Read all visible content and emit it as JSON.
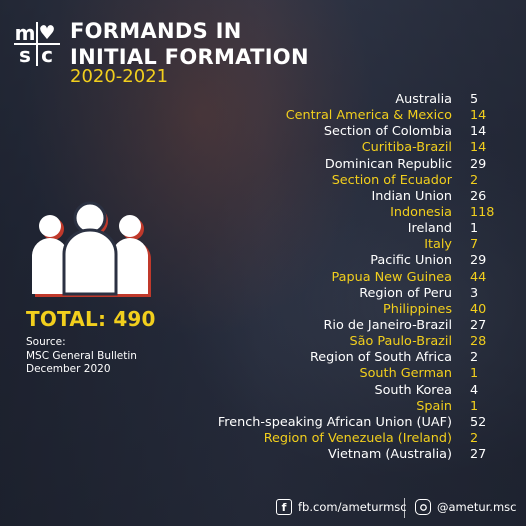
{
  "logo": {
    "top_left": "m",
    "top_right": "♥",
    "bottom_left": "s",
    "bottom_right": "c"
  },
  "title": {
    "line1": "FORMANDS IN",
    "line2": "INITIAL FORMATION"
  },
  "years": "2020-2021",
  "total": "TOTAL: 490",
  "source": {
    "line1": "Source:",
    "line2": "MSC General Bulletin",
    "line3": "December 2020"
  },
  "colors": {
    "accent": "#f2cf1d",
    "text": "#ffffff",
    "icon_shadow": "#c0392b"
  },
  "entries": [
    {
      "name": "Australia",
      "count": "5",
      "highlight": false
    },
    {
      "name": "Central America & Mexico",
      "count": "14",
      "highlight": true
    },
    {
      "name": "Section of Colombia",
      "count": "14",
      "highlight": false
    },
    {
      "name": "Curitiba-Brazil",
      "count": "14",
      "highlight": true
    },
    {
      "name": "Dominican Republic",
      "count": "29",
      "highlight": false
    },
    {
      "name": "Section of Ecuador",
      "count": "2",
      "highlight": true
    },
    {
      "name": "Indian Union",
      "count": "26",
      "highlight": false
    },
    {
      "name": "Indonesia",
      "count": "118",
      "highlight": true
    },
    {
      "name": "Ireland",
      "count": "1",
      "highlight": false
    },
    {
      "name": "Italy",
      "count": "7",
      "highlight": true
    },
    {
      "name": "Pacific Union",
      "count": "29",
      "highlight": false
    },
    {
      "name": "Papua New Guinea",
      "count": "44",
      "highlight": true
    },
    {
      "name": "Region of Peru",
      "count": "3",
      "highlight": false
    },
    {
      "name": "Philippines",
      "count": "40",
      "highlight": true
    },
    {
      "name": "Rio de Janeiro-Brazil",
      "count": "27",
      "highlight": false
    },
    {
      "name": "São Paulo-Brazil",
      "count": "28",
      "highlight": true
    },
    {
      "name": "Region of South Africa",
      "count": "2",
      "highlight": false
    },
    {
      "name": "South German",
      "count": "1",
      "highlight": true
    },
    {
      "name": "South Korea",
      "count": "4",
      "highlight": false
    },
    {
      "name": "Spain",
      "count": "1",
      "highlight": true
    },
    {
      "name": "French-speaking African Union (UAF)",
      "count": "52",
      "highlight": false
    },
    {
      "name": "Region of Venezuela (Ireland)",
      "count": "2",
      "highlight": true
    },
    {
      "name": "Vietnam (Australia)",
      "count": "27",
      "highlight": false
    }
  ],
  "social": {
    "facebook_icon": "facebook-icon",
    "facebook": "fb.com/ameturmsc",
    "instagram_icon": "instagram-icon",
    "instagram": "@ametur.msc"
  }
}
